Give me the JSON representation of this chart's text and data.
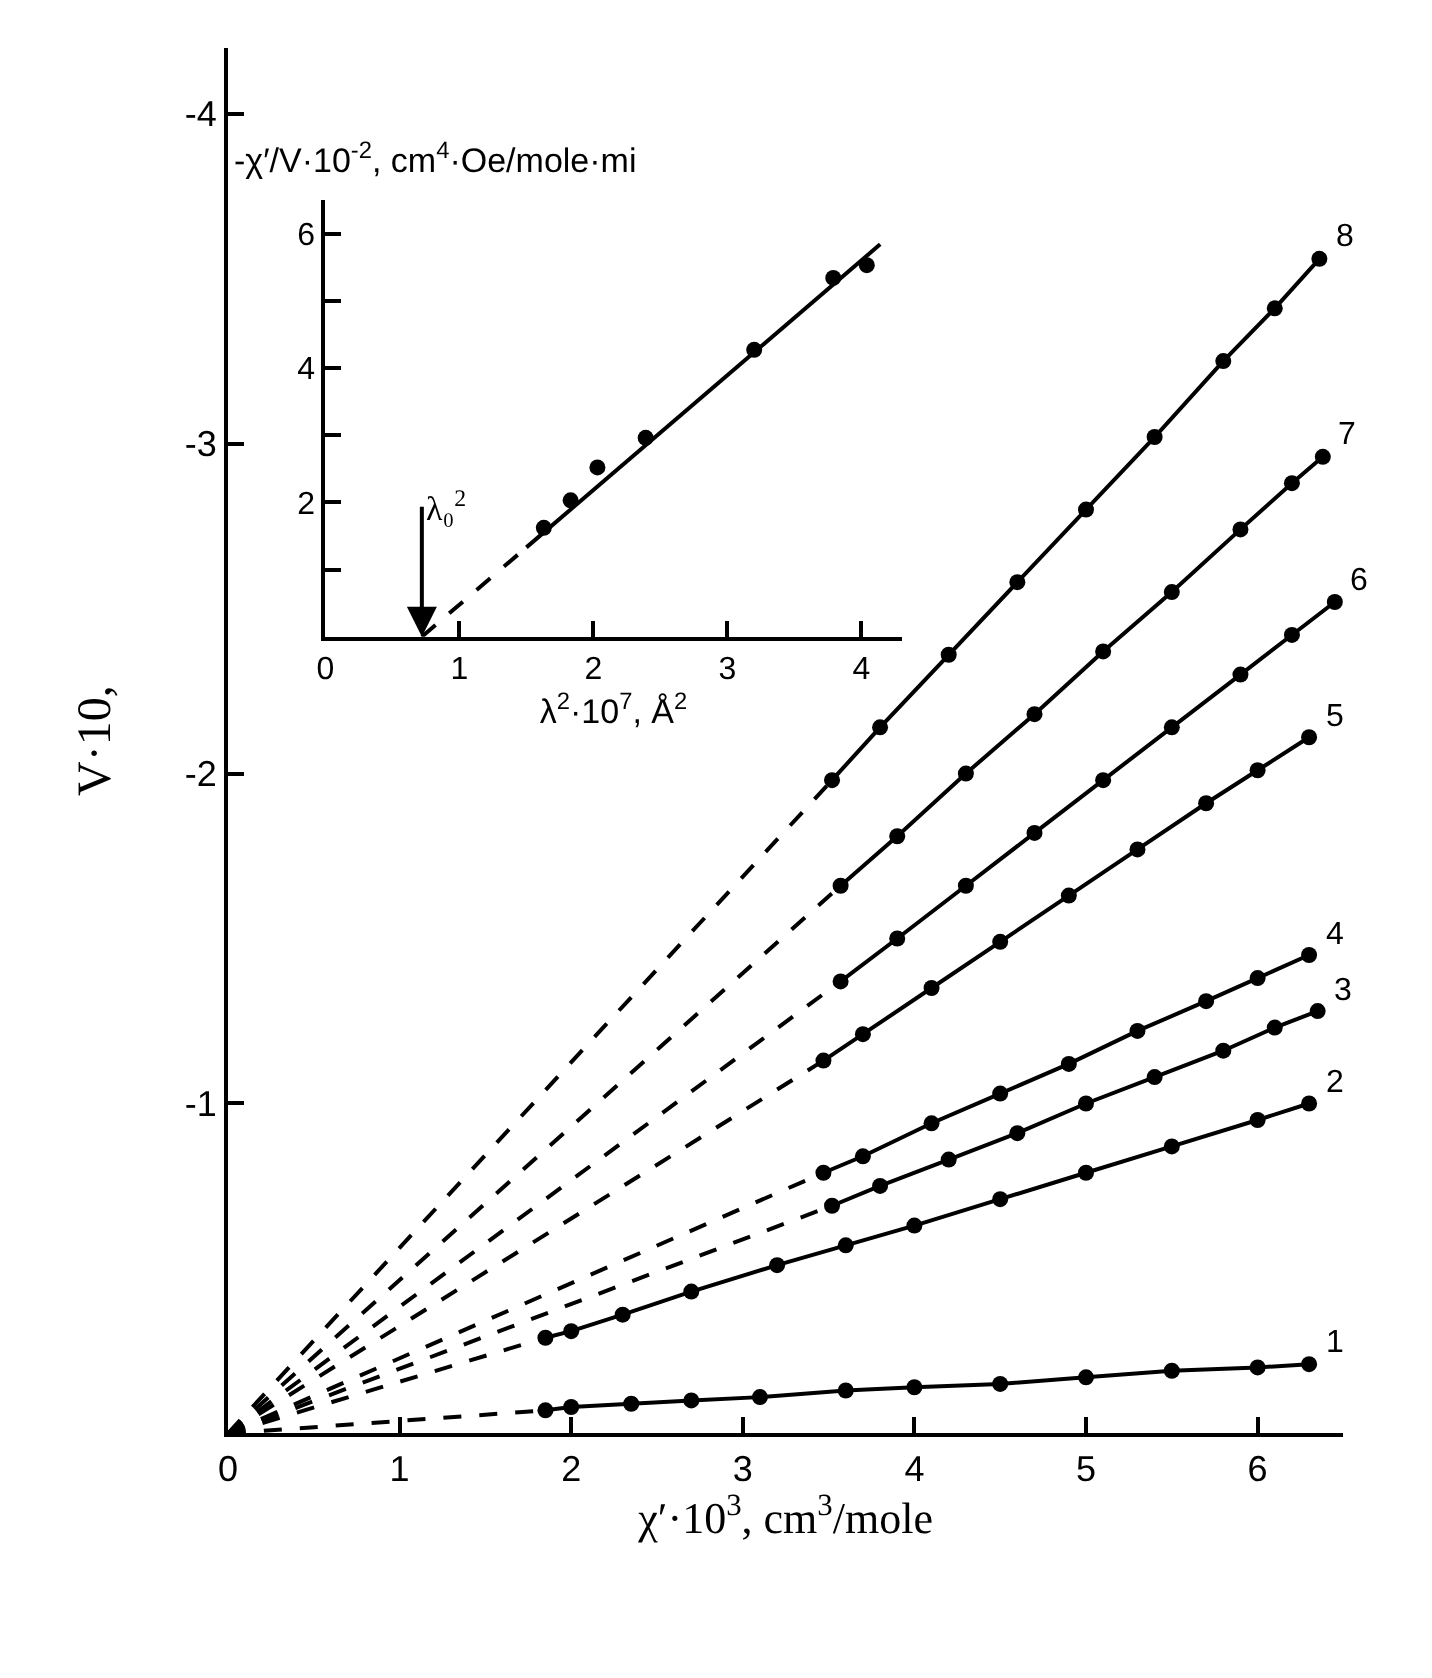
{
  "chart_data": [
    {
      "type": "line",
      "xlabel": "χ′·10$^{3}$, cm$^{3}$/mole",
      "ylabel": "V·10,",
      "xlim": [
        0,
        6.5
      ],
      "ylim": [
        0,
        -4.2
      ],
      "xticks": [
        0,
        1,
        2,
        3,
        4,
        5,
        6
      ],
      "yticks": [
        -1,
        -2,
        -3,
        -4
      ],
      "marker": "circle",
      "line_style": "solid",
      "series": [
        {
          "name": "1",
          "color": "#000000",
          "x": [
            1.85,
            2.0,
            2.35,
            2.7,
            3.1,
            3.6,
            4.0,
            4.5,
            5.0,
            5.5,
            6.0,
            6.3
          ],
          "values": [
            -0.07,
            -0.08,
            -0.09,
            -0.1,
            -0.11,
            -0.13,
            -0.14,
            -0.15,
            -0.17,
            -0.19,
            -0.2,
            -0.21
          ]
        },
        {
          "name": "2",
          "color": "#000000",
          "x": [
            1.85,
            2.0,
            2.3,
            2.7,
            3.2,
            3.6,
            4.0,
            4.5,
            5.0,
            5.5,
            6.0,
            6.3
          ],
          "values": [
            -0.29,
            -0.31,
            -0.36,
            -0.43,
            -0.51,
            -0.57,
            -0.63,
            -0.71,
            -0.79,
            -0.87,
            -0.95,
            -1.0
          ]
        },
        {
          "name": "3",
          "color": "#000000",
          "x": [
            3.52,
            3.8,
            4.2,
            4.6,
            5.0,
            5.4,
            5.8,
            6.1,
            6.35
          ],
          "values": [
            -0.69,
            -0.75,
            -0.83,
            -0.91,
            -1.0,
            -1.08,
            -1.16,
            -1.23,
            -1.28
          ]
        },
        {
          "name": "4",
          "color": "#000000",
          "x": [
            3.47,
            3.7,
            4.1,
            4.5,
            4.9,
            5.3,
            5.7,
            6.0,
            6.3
          ],
          "values": [
            -0.79,
            -0.84,
            -0.94,
            -1.03,
            -1.12,
            -1.22,
            -1.31,
            -1.38,
            -1.45
          ]
        },
        {
          "name": "5",
          "color": "#000000",
          "x": [
            3.47,
            3.7,
            4.1,
            4.5,
            4.9,
            5.3,
            5.7,
            6.0,
            6.3
          ],
          "values": [
            -1.13,
            -1.21,
            -1.35,
            -1.49,
            -1.63,
            -1.77,
            -1.91,
            -2.01,
            -2.11
          ]
        },
        {
          "name": "6",
          "color": "#000000",
          "x": [
            3.57,
            3.9,
            4.3,
            4.7,
            5.1,
            5.5,
            5.9,
            6.2,
            6.45
          ],
          "values": [
            -1.37,
            -1.5,
            -1.66,
            -1.82,
            -1.98,
            -2.14,
            -2.3,
            -2.42,
            -2.52
          ]
        },
        {
          "name": "7",
          "color": "#000000",
          "x": [
            3.57,
            3.9,
            4.3,
            4.7,
            5.1,
            5.5,
            5.9,
            6.2,
            6.38
          ],
          "values": [
            -1.66,
            -1.81,
            -2.0,
            -2.18,
            -2.37,
            -2.55,
            -2.74,
            -2.88,
            -2.96
          ]
        },
        {
          "name": "8",
          "color": "#000000",
          "x": [
            3.52,
            3.8,
            4.2,
            4.6,
            5.0,
            5.4,
            5.8,
            6.1,
            6.36
          ],
          "values": [
            -1.98,
            -2.14,
            -2.36,
            -2.58,
            -2.8,
            -3.02,
            -3.25,
            -3.41,
            -3.56
          ]
        },
        {
          "color": "#000000",
          "marker": "none",
          "line_style": "dashed",
          "x": [
            0,
            1.85
          ],
          "values": [
            0,
            -0.07
          ]
        },
        {
          "color": "#000000",
          "marker": "none",
          "line_style": "dashed",
          "x": [
            0,
            1.85
          ],
          "values": [
            0,
            -0.29
          ]
        },
        {
          "color": "#000000",
          "marker": "none",
          "line_style": "dashed",
          "x": [
            0,
            3.52
          ],
          "values": [
            0,
            -0.69
          ]
        },
        {
          "color": "#000000",
          "marker": "none",
          "line_style": "dashed",
          "x": [
            0,
            3.47
          ],
          "values": [
            0,
            -0.79
          ]
        },
        {
          "color": "#000000",
          "marker": "none",
          "line_style": "dashed",
          "x": [
            0,
            3.47
          ],
          "values": [
            0,
            -1.13
          ]
        },
        {
          "color": "#000000",
          "marker": "none",
          "line_style": "dashed",
          "x": [
            0,
            3.57
          ],
          "values": [
            0,
            -1.37
          ]
        },
        {
          "color": "#000000",
          "marker": "none",
          "line_style": "dashed",
          "x": [
            0,
            3.57
          ],
          "values": [
            0,
            -1.66
          ]
        },
        {
          "color": "#000000",
          "marker": "none",
          "line_style": "dashed",
          "x": [
            0,
            3.52
          ],
          "values": [
            0,
            -1.98
          ]
        }
      ]
    },
    {
      "type": "scatter",
      "xlabel": "λ$^{2}$·10$^{7}$, Å$^{2}$",
      "ylabel": "-χ′/V·10$^{-2}$, cm$^{4}$·Oe/mole·mi",
      "xlim": [
        0,
        4.3
      ],
      "ylim": [
        0,
        6.5
      ],
      "xticks": [
        0,
        1,
        2,
        3,
        4
      ],
      "yticks": [
        {
          "value": 1,
          "label": null
        },
        2,
        {
          "value": 3,
          "label": null
        },
        4,
        {
          "value": 5,
          "label": null
        },
        6
      ],
      "marker": "circle",
      "annotations": [
        {
          "text": "λ₀$^{2}$",
          "x": 0.72,
          "y": 0
        }
      ],
      "series": [
        {
          "color": "#000000",
          "x": [
            1.63,
            1.83,
            2.03,
            2.39,
            3.2,
            3.79,
            4.04
          ],
          "values": [
            1.62,
            2.03,
            2.52,
            2.96,
            4.27,
            5.34,
            5.53
          ]
        },
        {
          "type": "line",
          "color": "#000000",
          "marker": "none",
          "line_style": "solid",
          "x": [
            1.5,
            4.14
          ],
          "values": [
            1.33,
            5.84
          ]
        },
        {
          "type": "line",
          "color": "#000000",
          "marker": "none",
          "line_style": "dashed",
          "x": [
            0.72,
            1.5
          ],
          "values": [
            0,
            1.33
          ]
        }
      ]
    }
  ]
}
